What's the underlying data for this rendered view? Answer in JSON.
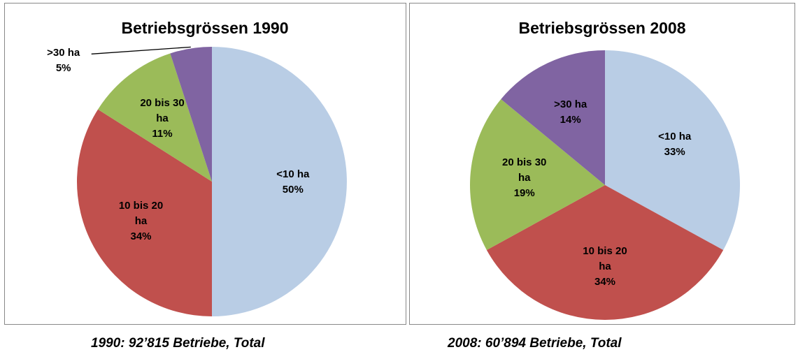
{
  "chart_data": [
    {
      "type": "pie",
      "title": "Betriebsgrössen 1990",
      "categories": [
        "<10 ha",
        "10 bis 20 ha",
        "20 bis 30 ha",
        ">30 ha"
      ],
      "values": [
        50,
        34,
        11,
        5
      ],
      "value_labels": [
        "50%",
        "34%",
        "11%",
        "5%"
      ],
      "colors": [
        "#b9cde5",
        "#c0504d",
        "#9bbb59",
        "#8064a2"
      ],
      "caption": "1990: 92’815 Betriebe, Total"
    },
    {
      "type": "pie",
      "title": "Betriebsgrössen 2008",
      "categories": [
        "<10 ha",
        "10 bis 20 ha",
        "20 bis 30 ha",
        ">30 ha"
      ],
      "values": [
        33,
        34,
        19,
        14
      ],
      "value_labels": [
        "33%",
        "34%",
        "19%",
        "14%"
      ],
      "colors": [
        "#b9cde5",
        "#c0504d",
        "#9bbb59",
        "#8064a2"
      ],
      "caption": "2008: 60’894 Betriebe, Total"
    }
  ]
}
